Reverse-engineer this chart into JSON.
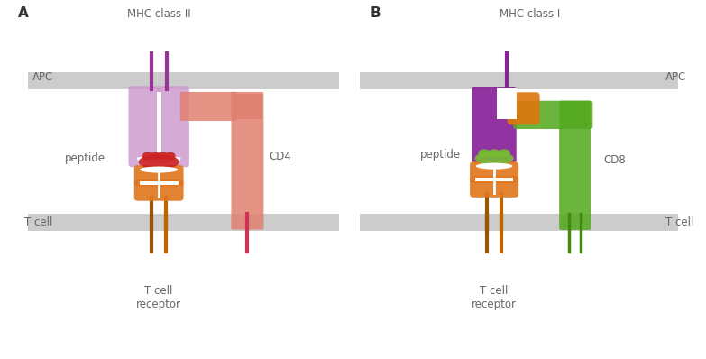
{
  "panel_A": {
    "label": "A",
    "title": "MHC class II",
    "apc_label": "APC",
    "tcell_label": "T cell",
    "receptor_label": "T cell\nreceptor",
    "peptide_label": "peptide",
    "cd_label": "CD4",
    "colors": {
      "mhc": "#cc99cc",
      "mhc_stem_left": "#993399",
      "mhc_stem_right": "#993399",
      "peptide": "#cc2222",
      "tcr_body": "#e07820",
      "tcr_stem_left": "#995500",
      "tcr_stem_right": "#bb6600",
      "cd4": "#e08070",
      "cd4_stem": "#cc3355",
      "membrane": "#cccccc"
    }
  },
  "panel_B": {
    "label": "B",
    "title": "MHC class I",
    "apc_label": "APC",
    "tcell_label": "T cell",
    "receptor_label": "T cell\nreceptor",
    "peptide_label": "peptide",
    "cd_label": "CD8",
    "colors": {
      "mhc_main": "#882299",
      "mhc_small": "#dd7711",
      "mhc_stem": "#882299",
      "peptide": "#77bb33",
      "tcr_body": "#e07820",
      "tcr_stem_left": "#995500",
      "tcr_stem_right": "#bb6600",
      "cd8": "#55aa22",
      "cd8_stem_left": "#448811",
      "cd8_stem_right": "#448811",
      "membrane": "#cccccc"
    }
  },
  "bg_color": "#ffffff",
  "text_color": "#666666"
}
